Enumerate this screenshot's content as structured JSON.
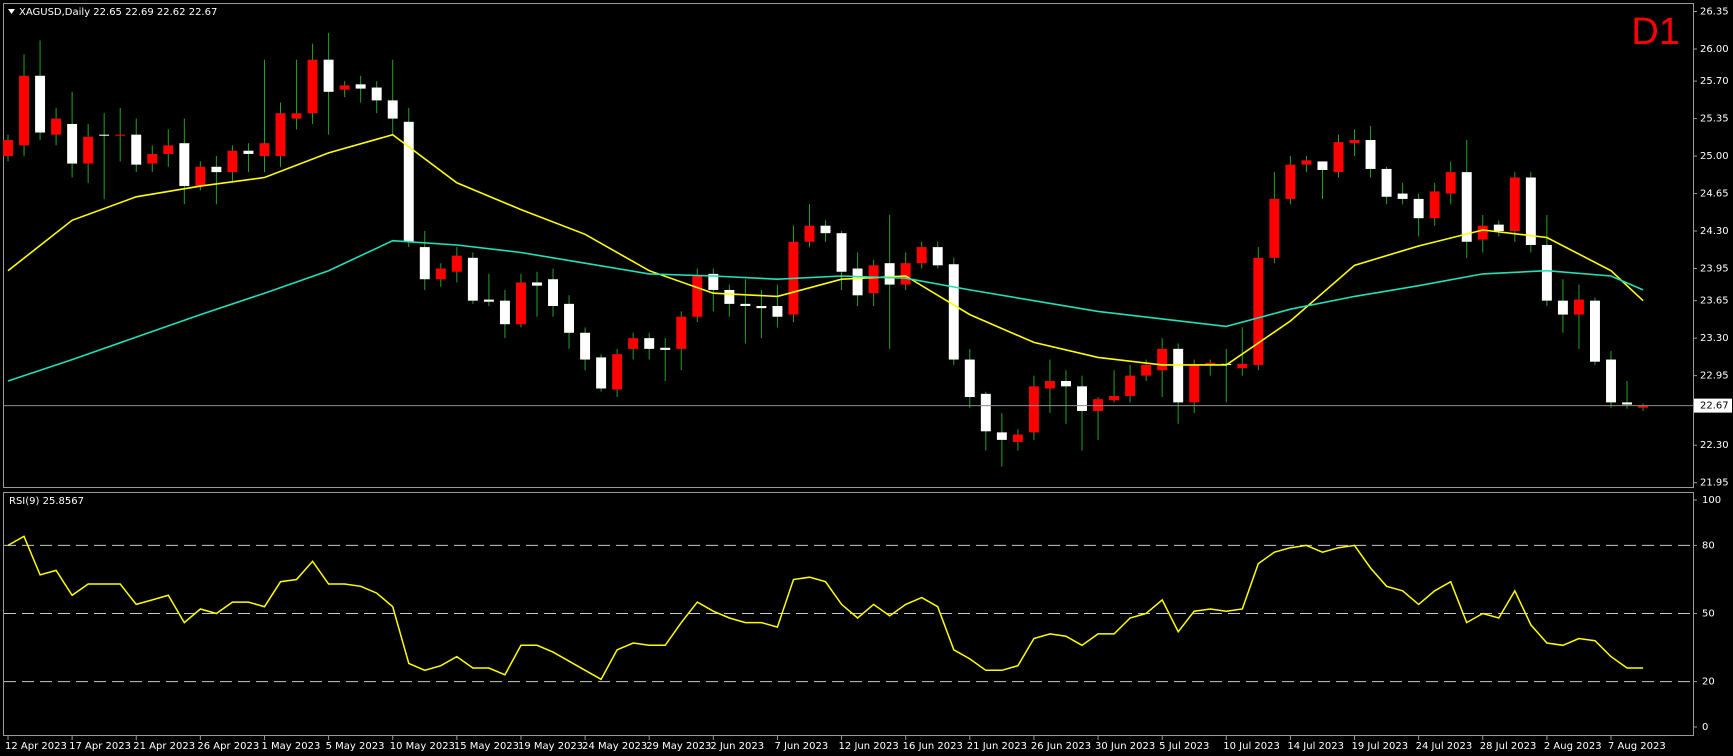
{
  "chart_data": [
    {
      "type": "candlestick",
      "title": "XAGUSD,Daily  22.65 22.69 22.62 22.67",
      "label": "D1",
      "categories": [
        "12 Apr 2023",
        null,
        null,
        null,
        "17 Apr 2023",
        null,
        null,
        null,
        "21 Apr 2023",
        null,
        null,
        null,
        "26 Apr 2023",
        null,
        null,
        null,
        "1 May 2023",
        null,
        null,
        null,
        "5 May 2023",
        null,
        null,
        null,
        "10 May 2023",
        null,
        null,
        null,
        "15 May 2023",
        null,
        null,
        null,
        "19 May 2023",
        null,
        null,
        null,
        "24 May 2023",
        null,
        null,
        null,
        "29 May 2023",
        null,
        null,
        null,
        "2 Jun 2023",
        null,
        null,
        null,
        "7 Jun 2023",
        null,
        null,
        null,
        "12 Jun 2023",
        null,
        null,
        null,
        "16 Jun 2023",
        null,
        null,
        null,
        "21 Jun 2023",
        null,
        null,
        null,
        "26 Jun 2023",
        null,
        null,
        null,
        "30 Jun 2023",
        null,
        null,
        null,
        "5 Jul 2023",
        null,
        null,
        null,
        "10 Jul 2023",
        null,
        null,
        null,
        "14 Jul 2023",
        null,
        null,
        null,
        "19 Jul 2023",
        null,
        null,
        null,
        "24 Jul 2023",
        null,
        null,
        null,
        "28 Jul 2023",
        null,
        null,
        null,
        "2 Aug 2023",
        null,
        null,
        null,
        "7 Aug 2023",
        null,
        null
      ],
      "open": [
        25.0,
        25.1,
        25.75,
        25.2,
        25.3,
        24.93,
        25.2,
        25.19,
        25.2,
        24.93,
        25.02,
        25.12,
        24.72,
        24.9,
        24.85,
        25.05,
        25.0,
        25.0,
        25.35,
        25.4,
        25.9,
        25.62,
        25.67,
        25.64,
        25.52,
        25.32,
        24.15,
        23.85,
        23.92,
        24.05,
        23.66,
        23.65,
        23.43,
        23.82,
        23.85,
        23.62,
        23.35,
        23.12,
        22.82,
        23.2,
        23.3,
        23.21,
        23.2,
        23.5,
        23.9,
        23.75,
        23.62,
        23.6,
        23.6,
        23.52,
        24.2,
        24.35,
        24.28,
        23.95,
        23.72,
        24.0,
        23.8,
        24.0,
        24.15,
        23.99,
        23.1,
        22.78,
        22.42,
        22.33,
        22.42,
        22.83,
        22.9,
        22.85,
        22.62,
        22.72,
        22.76,
        22.95,
        23.0,
        23.2,
        22.7,
        23.05,
        23.06,
        23.02,
        23.05,
        24.05,
        24.6,
        24.92,
        24.95,
        24.85,
        25.12,
        25.15,
        24.88,
        24.65,
        24.6,
        24.42,
        24.65,
        24.85,
        24.22,
        24.36,
        24.3,
        24.8,
        24.17,
        23.65,
        23.52,
        23.65,
        23.1,
        22.7,
        22.65
      ],
      "high": [
        25.2,
        25.95,
        26.08,
        25.45,
        25.6,
        25.3,
        25.4,
        25.45,
        25.35,
        25.1,
        25.25,
        25.35,
        24.95,
        25.0,
        25.1,
        25.12,
        25.9,
        25.5,
        25.9,
        26.05,
        26.15,
        25.7,
        25.75,
        25.7,
        25.9,
        25.45,
        24.3,
        24.0,
        24.15,
        24.1,
        23.9,
        23.75,
        23.9,
        23.92,
        23.95,
        23.7,
        23.4,
        23.15,
        23.2,
        23.35,
        23.35,
        23.3,
        23.55,
        23.95,
        23.95,
        23.8,
        23.85,
        23.75,
        23.8,
        24.35,
        24.55,
        24.4,
        24.3,
        24.1,
        24.03,
        24.45,
        24.1,
        24.2,
        24.2,
        24.05,
        23.2,
        22.8,
        22.6,
        22.45,
        22.95,
        23.1,
        23.0,
        22.95,
        22.75,
        23.0,
        23.05,
        23.1,
        23.3,
        23.25,
        23.1,
        23.1,
        23.2,
        23.4,
        24.15,
        24.85,
        25.0,
        25.0,
        24.95,
        25.2,
        25.25,
        25.28,
        24.9,
        24.75,
        24.65,
        24.75,
        24.95,
        25.15,
        24.45,
        24.4,
        24.85,
        24.85,
        24.45,
        23.85,
        23.8,
        23.68,
        23.18,
        22.9,
        22.69
      ],
      "low": [
        24.95,
        25.0,
        25.15,
        25.1,
        24.8,
        24.75,
        24.6,
        24.95,
        24.85,
        24.85,
        24.9,
        24.55,
        24.68,
        24.55,
        24.75,
        24.85,
        24.85,
        24.9,
        25.25,
        25.3,
        25.2,
        25.55,
        25.5,
        25.4,
        25.2,
        24.15,
        23.75,
        23.78,
        23.82,
        23.62,
        23.6,
        23.3,
        23.4,
        23.5,
        23.5,
        23.2,
        23.0,
        22.8,
        22.75,
        23.1,
        23.1,
        22.9,
        23.0,
        23.45,
        23.55,
        23.5,
        23.25,
        23.3,
        23.4,
        23.45,
        24.15,
        24.2,
        23.75,
        23.6,
        23.6,
        23.2,
        23.75,
        23.95,
        23.95,
        23.05,
        22.65,
        22.25,
        22.1,
        22.25,
        22.35,
        22.6,
        22.5,
        22.25,
        22.35,
        22.7,
        22.7,
        22.9,
        22.75,
        22.5,
        22.6,
        22.95,
        22.7,
        22.95,
        23.0,
        24.0,
        24.55,
        24.85,
        24.6,
        24.8,
        25.0,
        24.8,
        24.55,
        24.55,
        24.25,
        24.35,
        24.55,
        24.05,
        24.1,
        24.25,
        24.2,
        24.1,
        23.6,
        23.35,
        23.2,
        23.05,
        22.65,
        22.64,
        22.62
      ],
      "close": [
        25.15,
        25.75,
        25.22,
        25.35,
        24.93,
        25.18,
        25.19,
        25.2,
        24.92,
        25.02,
        25.1,
        24.72,
        24.9,
        24.85,
        25.05,
        25.02,
        25.12,
        25.4,
        25.4,
        25.9,
        25.6,
        25.66,
        25.63,
        25.52,
        25.35,
        24.2,
        23.85,
        23.95,
        24.07,
        23.65,
        23.64,
        23.43,
        23.82,
        23.79,
        23.6,
        23.35,
        23.1,
        22.83,
        23.15,
        23.3,
        23.2,
        23.19,
        23.5,
        23.88,
        23.75,
        23.62,
        23.6,
        23.58,
        23.5,
        24.2,
        24.35,
        24.28,
        23.92,
        23.7,
        23.98,
        23.8,
        24.0,
        24.15,
        23.98,
        23.1,
        22.75,
        22.43,
        22.35,
        22.4,
        22.85,
        22.9,
        22.85,
        22.62,
        22.73,
        22.76,
        22.95,
        23.05,
        23.2,
        22.7,
        23.05,
        23.07,
        23.05,
        23.06,
        24.05,
        24.6,
        24.92,
        24.96,
        24.87,
        25.13,
        25.15,
        24.88,
        24.62,
        24.6,
        24.42,
        24.67,
        24.85,
        24.2,
        24.35,
        24.3,
        24.8,
        24.17,
        23.65,
        23.52,
        23.66,
        23.08,
        22.7,
        22.68,
        22.67
      ],
      "up_color": "#ff0000",
      "down_color": "#ffffff",
      "wick_color": "#1fa51f",
      "lines": [
        {
          "color": "#ffff00",
          "x": [
            0,
            4,
            8,
            12,
            16,
            20,
            24,
            28,
            32,
            36,
            40,
            44,
            48,
            52,
            56,
            60,
            64,
            68,
            72,
            76,
            80,
            84,
            88,
            92,
            96,
            100,
            102
          ],
          "values": [
            23.93,
            24.4,
            24.62,
            24.72,
            24.8,
            25.03,
            25.2,
            24.75,
            24.5,
            24.27,
            23.93,
            23.72,
            23.69,
            23.85,
            23.88,
            23.52,
            23.26,
            23.12,
            23.05,
            23.05,
            23.46,
            23.98,
            24.16,
            24.31,
            24.24,
            23.93,
            23.65
          ]
        },
        {
          "color": "#22e0b8",
          "x": [
            0,
            4,
            8,
            12,
            16,
            20,
            24,
            28,
            32,
            36,
            40,
            44,
            48,
            52,
            56,
            60,
            64,
            68,
            72,
            76,
            80,
            84,
            88,
            92,
            96,
            100,
            102
          ],
          "values": [
            22.9,
            23.1,
            23.31,
            23.52,
            23.72,
            23.93,
            24.21,
            24.17,
            24.1,
            24.0,
            23.9,
            23.88,
            23.85,
            23.88,
            23.86,
            23.75,
            23.65,
            23.55,
            23.48,
            23.41,
            23.57,
            23.69,
            23.79,
            23.9,
            23.93,
            23.88,
            23.75
          ]
        }
      ],
      "ylim": [
        21.91,
        26.42
      ],
      "yticks": [
        26.35,
        {
          "value": 26.0,
          "label": "26.00"
        },
        {
          "value": 25.7,
          "label": "25.70"
        },
        25.35,
        {
          "value": 25.0,
          "label": "25.00"
        },
        24.65,
        {
          "value": 24.3,
          "label": "24.30"
        },
        23.95,
        23.65,
        {
          "value": 23.3,
          "label": "23.30"
        },
        22.95,
        {
          "value": 22.3,
          "label": "22.30"
        },
        21.95
      ]
    },
    {
      "type": "line",
      "title": "RSI(9) 25.8567",
      "values": [
        80,
        84,
        67,
        69,
        58,
        63,
        63,
        63,
        54,
        56,
        58,
        46,
        52,
        50,
        55,
        55,
        53,
        64,
        65,
        73,
        63,
        63,
        62,
        59,
        53,
        28,
        25,
        27,
        31,
        26,
        26,
        23,
        36,
        36,
        33,
        29,
        25,
        21,
        34,
        37,
        36,
        36,
        46,
        55,
        51,
        48,
        46,
        46,
        44,
        65,
        66,
        64,
        54,
        48,
        54,
        49,
        54,
        57,
        53,
        34,
        30,
        25,
        25,
        27,
        39,
        41,
        40,
        36,
        41,
        41,
        48,
        50,
        56,
        42,
        51,
        52,
        51,
        52,
        72,
        77,
        79,
        80,
        77,
        79,
        80,
        70,
        62,
        60,
        54,
        60,
        64,
        46,
        50,
        48,
        60,
        45,
        37,
        36,
        39,
        38,
        31,
        26,
        26
      ],
      "color": "#ffff00",
      "ylim": [
        0,
        100
      ],
      "yticks": [
        0,
        20,
        50,
        80,
        100
      ],
      "levels": [
        20,
        50,
        80
      ]
    }
  ]
}
